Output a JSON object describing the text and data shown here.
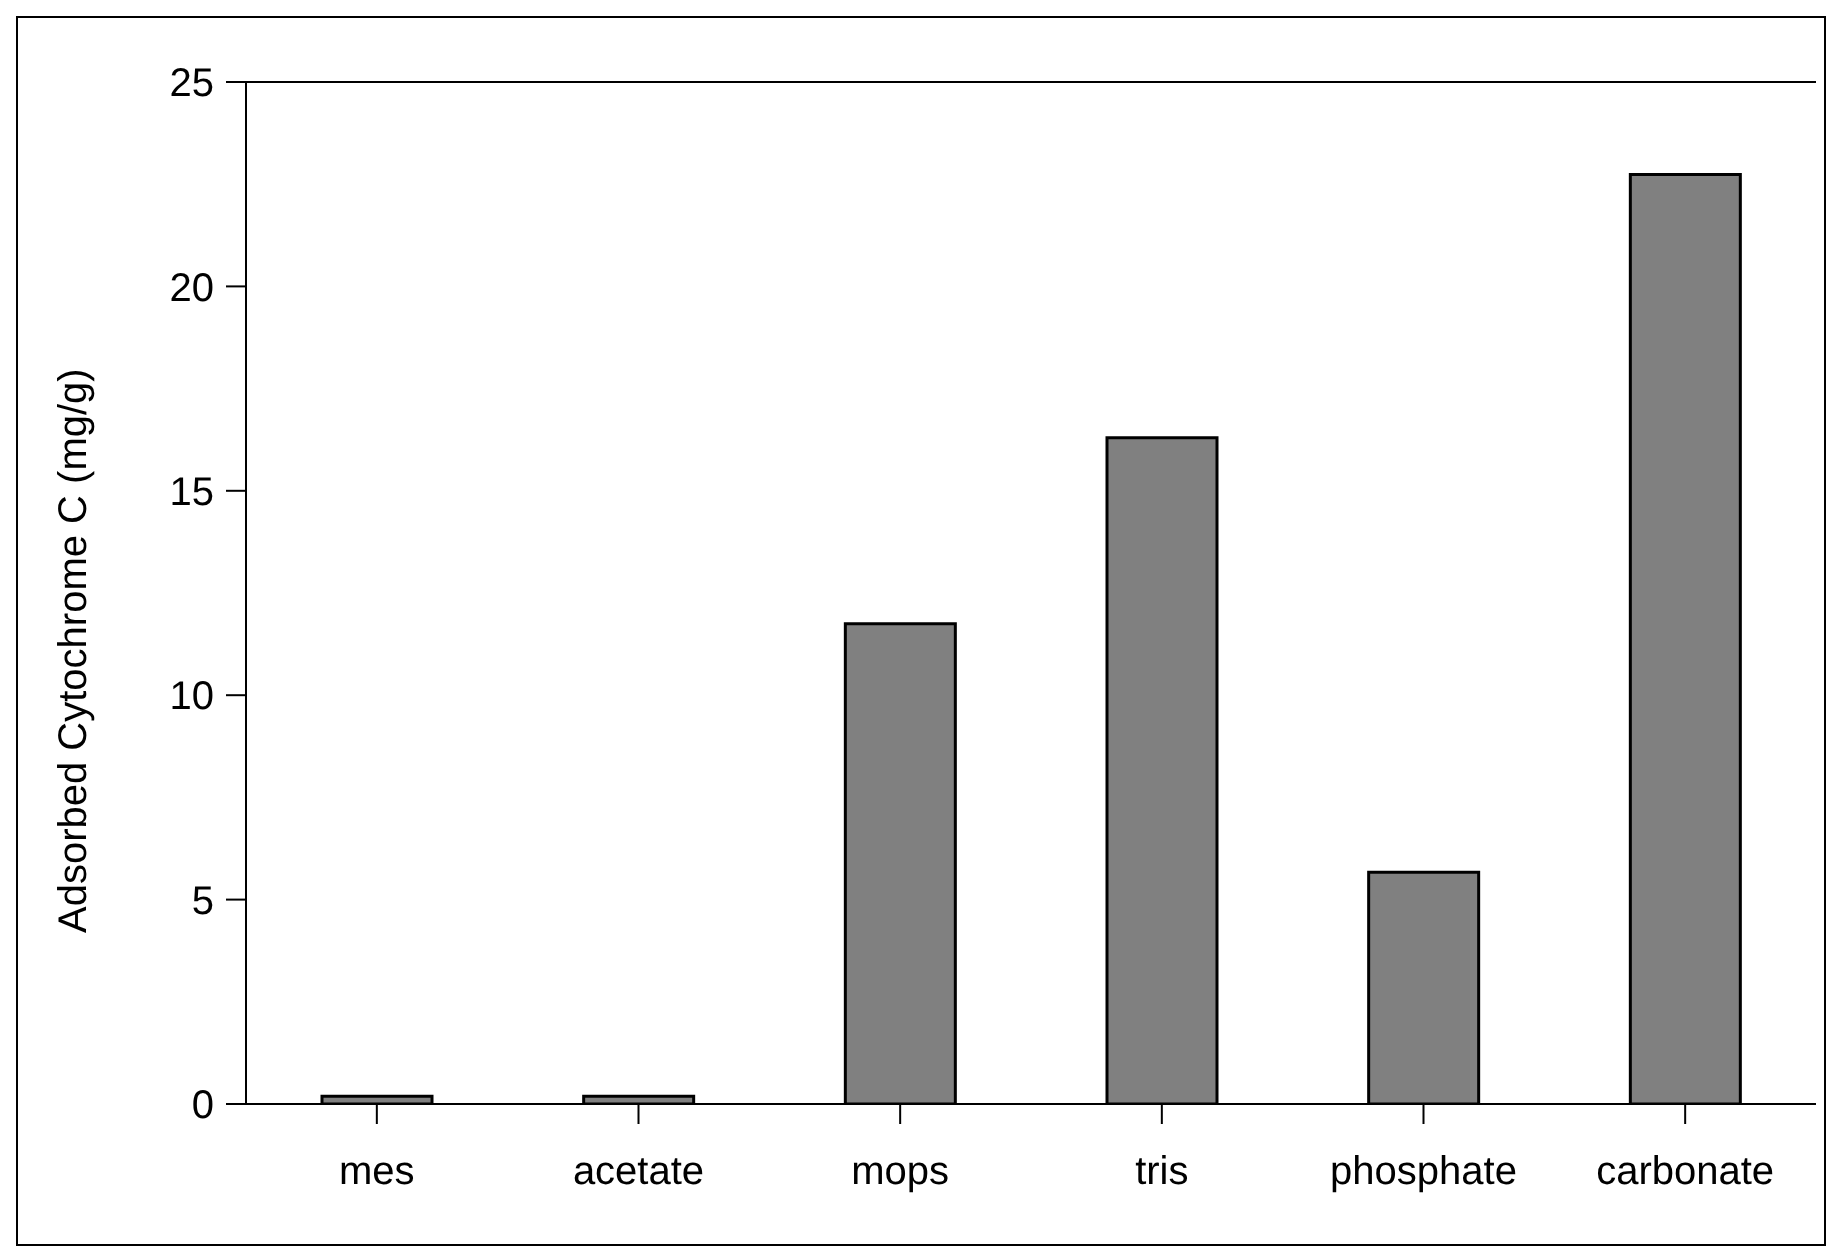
{
  "chart_data": {
    "type": "bar",
    "ylabel": "Adsorbed Cytochrome C (mg/g)",
    "categories": [
      "mes",
      "acetate",
      "mops",
      "tris",
      "phosphate",
      "carbonate"
    ],
    "values": [
      0.19,
      0.19,
      11.75,
      16.3,
      5.67,
      22.74
    ],
    "color": "#808080",
    "ylim": [
      0,
      25
    ],
    "yticks": [
      0,
      5,
      10,
      15,
      20,
      25
    ],
    "grid": false,
    "legend": false
  }
}
